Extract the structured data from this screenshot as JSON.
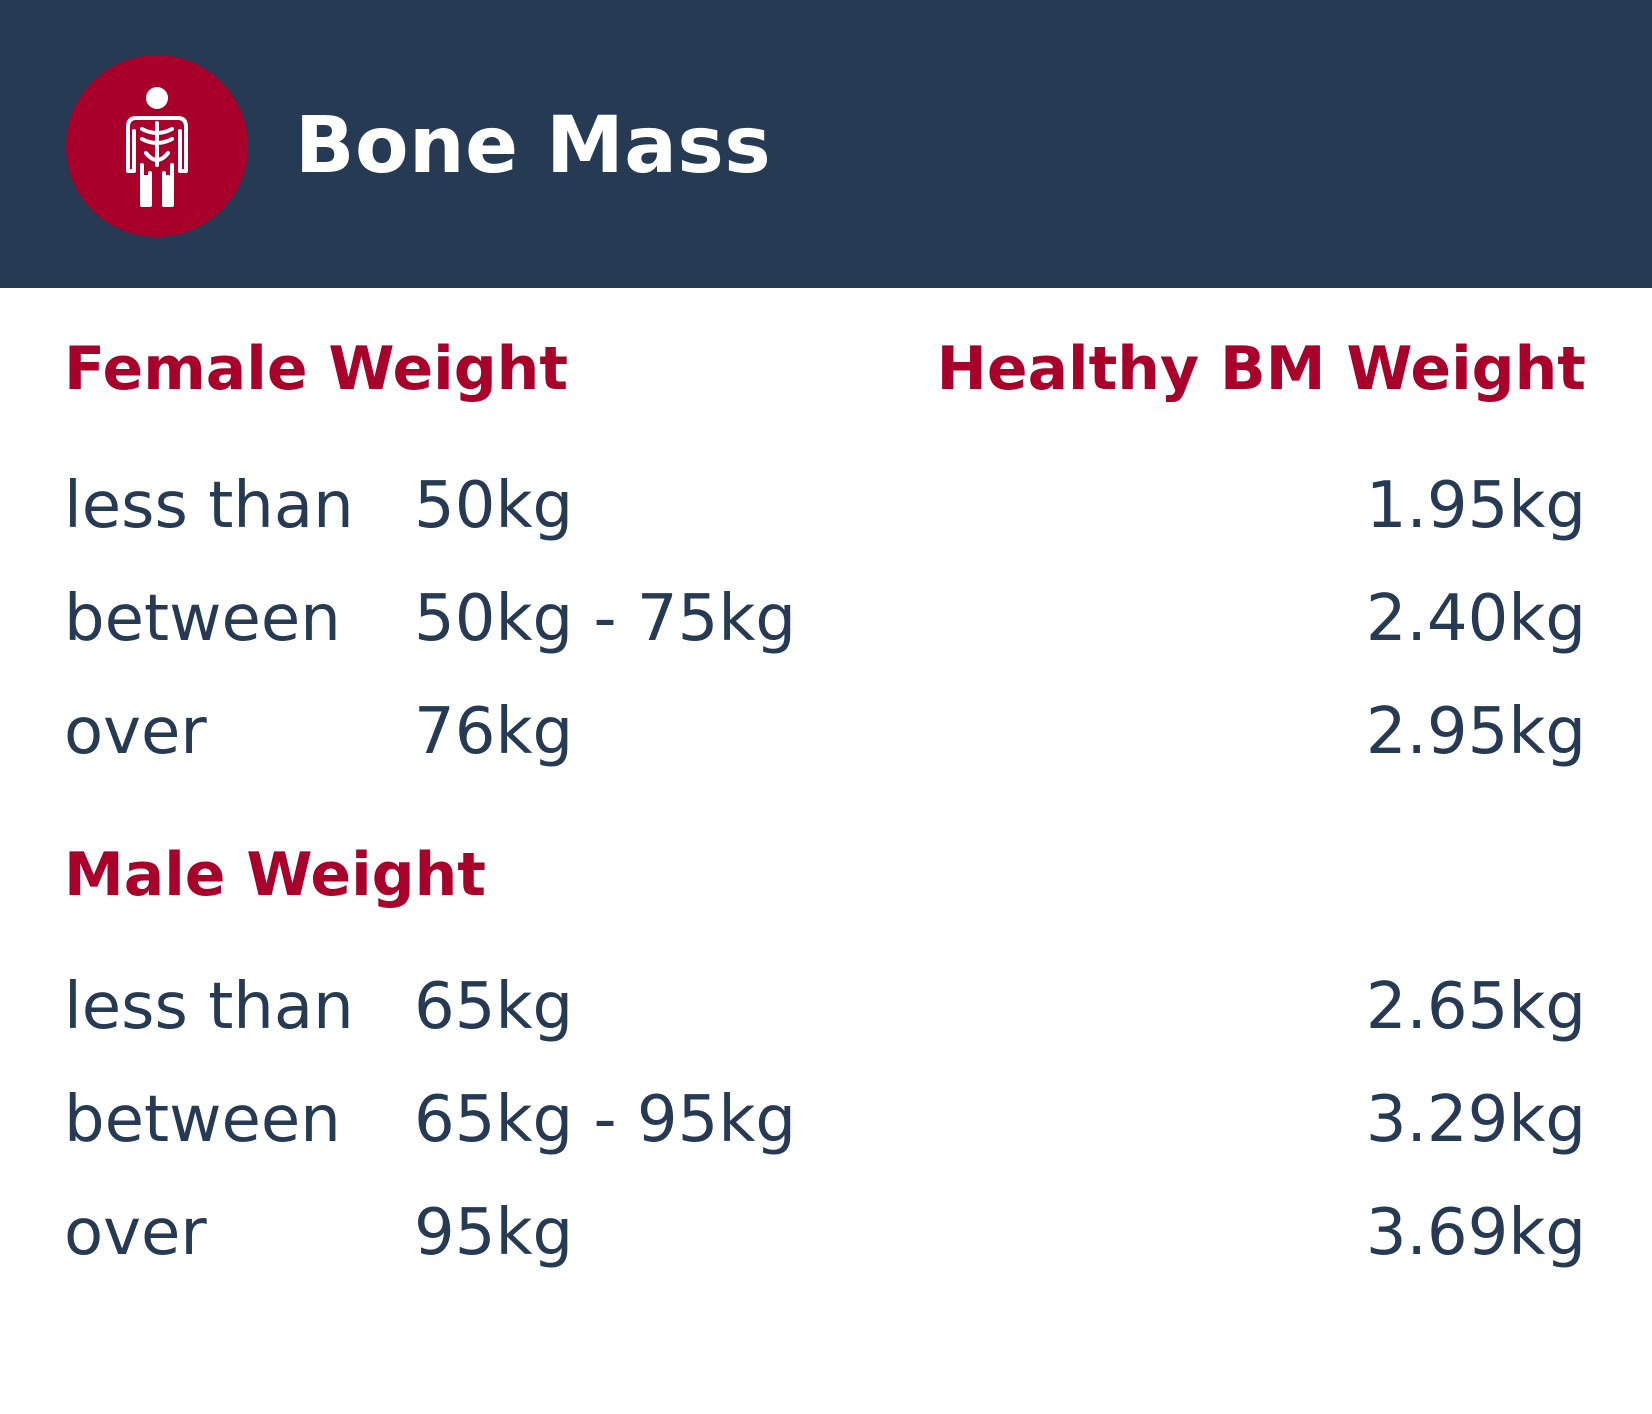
{
  "header": {
    "title": "Bone Mass",
    "icon": "human-skeleton-icon",
    "background_color": "#263a53",
    "accent_color": "#a8002a"
  },
  "female": {
    "heading": "Female Weight",
    "value_heading": "Healthy BM Weight",
    "rows": [
      {
        "qualifier": "less than",
        "range": "50kg",
        "value": "1.95kg"
      },
      {
        "qualifier": "between",
        "range": "50kg - 75kg",
        "value": "2.40kg"
      },
      {
        "qualifier": "over",
        "range": "76kg",
        "value": "2.95kg"
      }
    ]
  },
  "male": {
    "heading": "Male Weight",
    "rows": [
      {
        "qualifier": "less than",
        "range": "65kg",
        "value": "2.65kg"
      },
      {
        "qualifier": "between",
        "range": "65kg - 95kg",
        "value": "3.29kg"
      },
      {
        "qualifier": "over",
        "range": "95kg",
        "value": "3.69kg"
      }
    ]
  }
}
